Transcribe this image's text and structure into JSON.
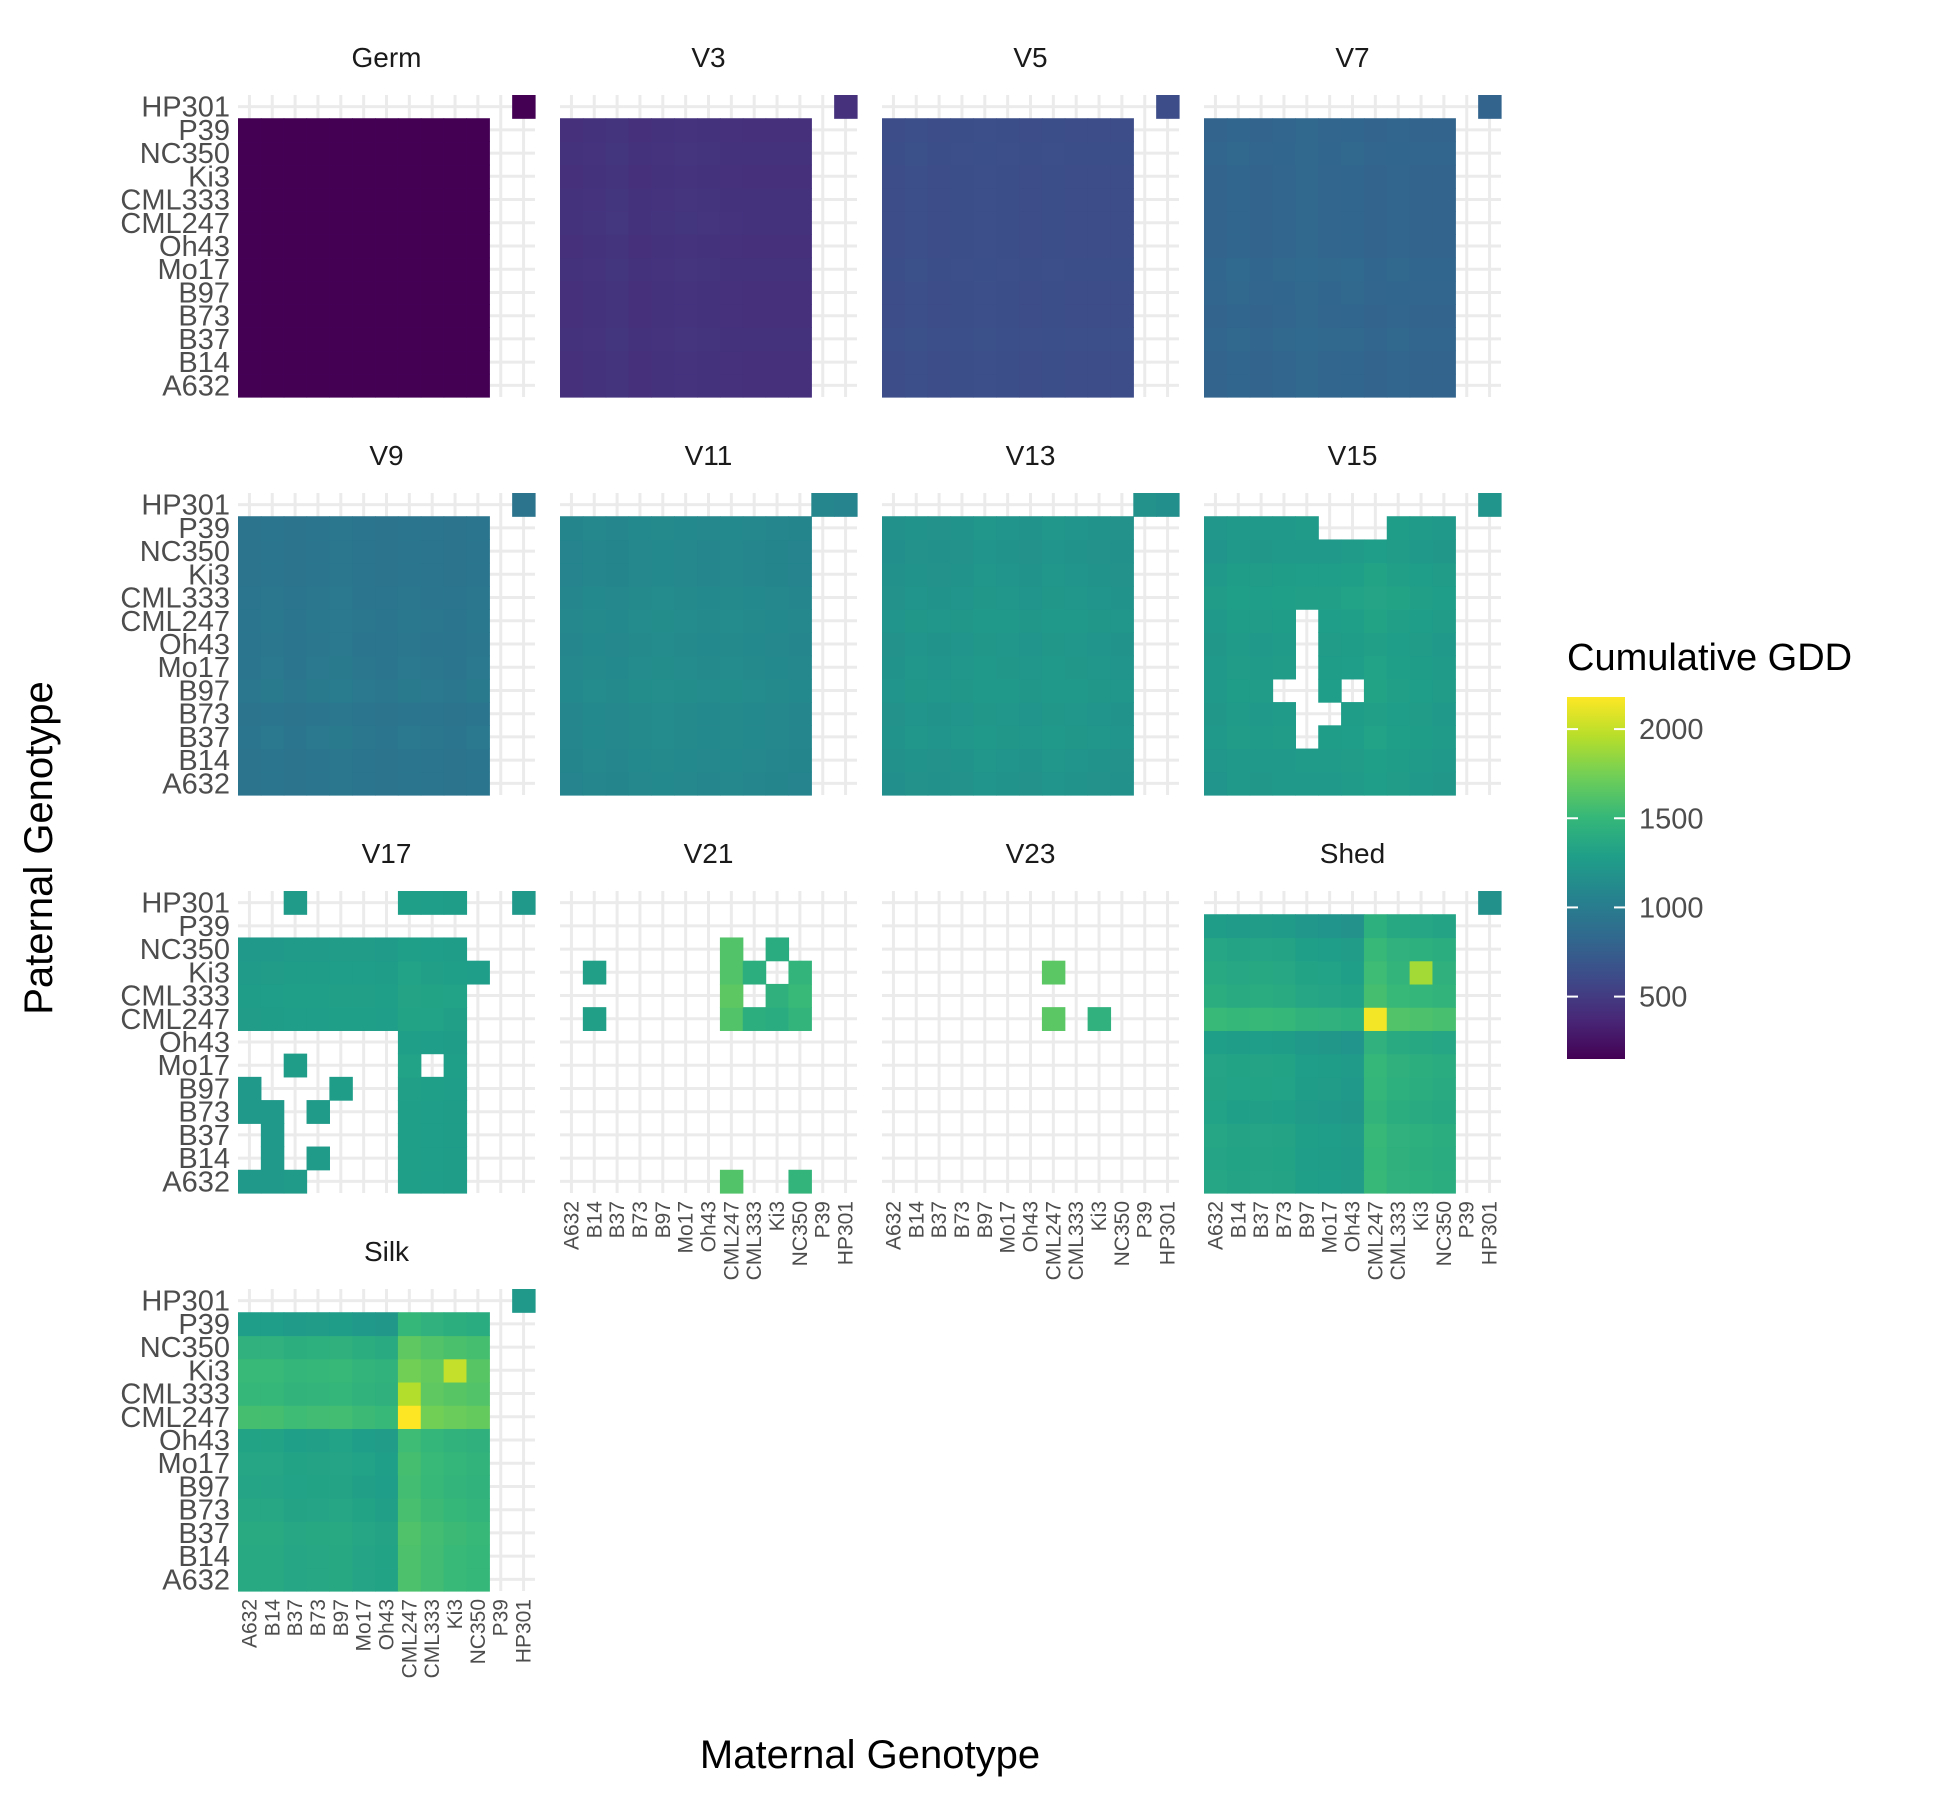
{
  "chart_data": {
    "type": "heatmap",
    "xlabel": "Maternal Genotype",
    "ylabel": "Paternal Genotype",
    "genotypes": [
      "A632",
      "B14",
      "B37",
      "B73",
      "B97",
      "Mo17",
      "Oh43",
      "CML247",
      "CML333",
      "Ki3",
      "NC350",
      "P39",
      "HP301"
    ],
    "panels": [
      {
        "name": "Germ",
        "base": 150,
        "mat_eff": [
          0,
          0,
          0,
          0,
          0,
          0,
          0,
          0,
          0,
          0,
          0,
          0,
          0
        ],
        "pat_eff": [
          0,
          0,
          0,
          0,
          0,
          0,
          0,
          0,
          0,
          0,
          0,
          0,
          0
        ],
        "missing": [],
        "present": [],
        "extra": [
          [
            12,
            12
          ]
        ]
      },
      {
        "name": "V3",
        "base": 430,
        "mat_eff": [
          0,
          10,
          25,
          0,
          10,
          20,
          15,
          5,
          0,
          0,
          0,
          10,
          0
        ],
        "pat_eff": [
          0,
          0,
          10,
          0,
          0,
          10,
          0,
          15,
          10,
          0,
          10,
          0,
          5
        ],
        "missing": [],
        "present": [],
        "extra": [
          [
            12,
            12
          ]
        ]
      },
      {
        "name": "V5",
        "base": 620,
        "mat_eff": [
          0,
          20,
          0,
          10,
          15,
          10,
          0,
          10,
          0,
          0,
          0,
          10,
          0
        ],
        "pat_eff": [
          0,
          0,
          15,
          0,
          0,
          10,
          0,
          0,
          0,
          0,
          10,
          0,
          0
        ],
        "missing": [],
        "present": [],
        "extra": [
          [
            12,
            12
          ]
        ]
      },
      {
        "name": "V7",
        "base": 800,
        "mat_eff": [
          0,
          20,
          0,
          10,
          25,
          10,
          20,
          0,
          10,
          0,
          0,
          20,
          0
        ],
        "pat_eff": [
          0,
          0,
          15,
          0,
          10,
          20,
          0,
          0,
          0,
          0,
          10,
          0,
          0
        ],
        "missing": [],
        "present": [],
        "extra": [
          [
            12,
            12
          ]
        ]
      },
      {
        "name": "V9",
        "base": 930,
        "mat_eff": [
          0,
          20,
          0,
          20,
          30,
          10,
          0,
          20,
          10,
          0,
          20,
          0,
          0
        ],
        "pat_eff": [
          0,
          0,
          20,
          0,
          30,
          20,
          10,
          15,
          10,
          0,
          0,
          0,
          0
        ],
        "missing": [],
        "present": [],
        "extra": [
          [
            12,
            12
          ]
        ]
      },
      {
        "name": "V11",
        "base": 1070,
        "mat_eff": [
          0,
          20,
          10,
          30,
          40,
          30,
          20,
          30,
          20,
          10,
          0,
          20,
          0
        ],
        "pat_eff": [
          0,
          10,
          20,
          20,
          40,
          30,
          20,
          30,
          20,
          0,
          0,
          10,
          0
        ],
        "missing": [],
        "present": [],
        "extra": [
          [
            12,
            11
          ],
          [
            12,
            12
          ]
        ]
      },
      {
        "name": "V13",
        "base": 1160,
        "mat_eff": [
          0,
          20,
          10,
          20,
          40,
          30,
          20,
          40,
          30,
          20,
          10,
          20,
          0
        ],
        "pat_eff": [
          0,
          10,
          30,
          20,
          40,
          30,
          20,
          40,
          20,
          10,
          0,
          10,
          0
        ],
        "missing": [
          [
            6,
            11
          ]
        ],
        "present": [],
        "extra": [
          [
            12,
            11
          ],
          [
            12,
            12
          ]
        ]
      },
      {
        "name": "V15",
        "base": 1200,
        "mat_eff": [
          0,
          30,
          20,
          30,
          40,
          40,
          50,
          80,
          60,
          40,
          20,
          20,
          0
        ],
        "pat_eff": [
          0,
          10,
          30,
          20,
          40,
          30,
          20,
          40,
          60,
          40,
          0,
          10,
          0
        ],
        "missing": [
          [
            3,
            4
          ],
          [
            4,
            4
          ],
          [
            5,
            4
          ],
          [
            6,
            4
          ],
          [
            7,
            4
          ],
          [
            4,
            3
          ],
          [
            3,
            5
          ],
          [
            2,
            4
          ],
          [
            11,
            5
          ],
          [
            11,
            6
          ],
          [
            11,
            7
          ],
          [
            6,
            11
          ],
          [
            7,
            11
          ],
          [
            8,
            11
          ],
          [
            9,
            11
          ],
          [
            10,
            11
          ],
          [
            11,
            11
          ],
          [
            4,
            6
          ]
        ],
        "present": [],
        "extra": [
          [
            12,
            12
          ]
        ]
      },
      {
        "name": "V17",
        "base": 1230,
        "mat_eff": [
          0,
          10,
          20,
          20,
          30,
          30,
          20,
          60,
          50,
          40,
          30,
          0,
          0
        ],
        "pat_eff": [
          0,
          0,
          0,
          0,
          10,
          20,
          0,
          30,
          40,
          20,
          0,
          0,
          0
        ],
        "missing": [],
        "present": [
          [
            12,
            2
          ],
          [
            12,
            7
          ],
          [
            12,
            8
          ],
          [
            12,
            9
          ],
          [
            12,
            12
          ],
          [
            10,
            0
          ],
          [
            10,
            1
          ],
          [
            10,
            2
          ],
          [
            10,
            3
          ],
          [
            10,
            4
          ],
          [
            10,
            5
          ],
          [
            10,
            6
          ],
          [
            10,
            7
          ],
          [
            10,
            8
          ],
          [
            10,
            9
          ],
          [
            9,
            0
          ],
          [
            9,
            1
          ],
          [
            9,
            2
          ],
          [
            9,
            3
          ],
          [
            9,
            4
          ],
          [
            9,
            5
          ],
          [
            9,
            6
          ],
          [
            9,
            7
          ],
          [
            9,
            8
          ],
          [
            9,
            9
          ],
          [
            9,
            10
          ],
          [
            8,
            0
          ],
          [
            8,
            1
          ],
          [
            8,
            2
          ],
          [
            8,
            3
          ],
          [
            8,
            4
          ],
          [
            8,
            5
          ],
          [
            8,
            6
          ],
          [
            8,
            7
          ],
          [
            8,
            8
          ],
          [
            8,
            9
          ],
          [
            7,
            0
          ],
          [
            7,
            1
          ],
          [
            7,
            2
          ],
          [
            7,
            3
          ],
          [
            7,
            4
          ],
          [
            7,
            5
          ],
          [
            7,
            6
          ],
          [
            7,
            7
          ],
          [
            7,
            8
          ],
          [
            7,
            9
          ],
          [
            6,
            7
          ],
          [
            6,
            8
          ],
          [
            6,
            9
          ],
          [
            5,
            2
          ],
          [
            5,
            7
          ],
          [
            5,
            9
          ],
          [
            4,
            0
          ],
          [
            4,
            4
          ],
          [
            4,
            7
          ],
          [
            4,
            8
          ],
          [
            4,
            9
          ],
          [
            3,
            0
          ],
          [
            3,
            1
          ],
          [
            3,
            3
          ],
          [
            3,
            7
          ],
          [
            3,
            8
          ],
          [
            3,
            9
          ],
          [
            2,
            1
          ],
          [
            2,
            7
          ],
          [
            2,
            8
          ],
          [
            2,
            9
          ],
          [
            1,
            1
          ],
          [
            1,
            3
          ],
          [
            1,
            7
          ],
          [
            1,
            8
          ],
          [
            1,
            9
          ],
          [
            0,
            0
          ],
          [
            0,
            1
          ],
          [
            0,
            2
          ],
          [
            0,
            7
          ],
          [
            0,
            8
          ],
          [
            0,
            9
          ]
        ],
        "extra": []
      },
      {
        "name": "V21",
        "base": 1300,
        "mat_eff": [
          0,
          0,
          0,
          0,
          0,
          0,
          0,
          320,
          120,
          100,
          180,
          0,
          0
        ],
        "pat_eff": [
          0,
          0,
          0,
          0,
          0,
          0,
          0,
          0,
          40,
          0,
          0,
          0,
          0
        ],
        "missing": [],
        "present": [
          [
            10,
            7
          ],
          [
            10,
            9
          ],
          [
            9,
            1
          ],
          [
            9,
            7
          ],
          [
            9,
            8
          ],
          [
            9,
            10
          ],
          [
            8,
            7
          ],
          [
            8,
            9
          ],
          [
            8,
            10
          ],
          [
            7,
            1
          ],
          [
            7,
            7
          ],
          [
            7,
            8
          ],
          [
            7,
            9
          ],
          [
            7,
            10
          ],
          [
            0,
            7
          ],
          [
            0,
            10
          ]
        ],
        "extra": []
      },
      {
        "name": "V23",
        "base": 1450,
        "mat_eff": [
          0,
          0,
          0,
          0,
          0,
          0,
          0,
          200,
          0,
          0,
          0,
          0,
          0
        ],
        "pat_eff": [
          0,
          0,
          0,
          0,
          0,
          0,
          0,
          0,
          0,
          0,
          0,
          0,
          0
        ],
        "missing": [],
        "present": [
          [
            9,
            7
          ],
          [
            7,
            7
          ],
          [
            7,
            9
          ]
        ],
        "extra": []
      },
      {
        "name": "Shed",
        "base": 1170,
        "mat_eff": [
          120,
          100,
          110,
          100,
          60,
          50,
          30,
          280,
          220,
          200,
          180,
          0,
          0
        ],
        "pat_eff": [
          60,
          50,
          60,
          20,
          40,
          50,
          0,
          230,
          120,
          90,
          60,
          -20,
          0
        ],
        "missing": [],
        "present": [],
        "extra": [
          [
            12,
            12
          ]
        ],
        "spike": [
          [
            7,
            7,
            2150
          ],
          [
            9,
            9,
            1900
          ]
        ]
      },
      {
        "name": "Silk",
        "base": 1240,
        "mat_eff": [
          80,
          80,
          50,
          60,
          70,
          40,
          20,
          300,
          250,
          220,
          200,
          0,
          0
        ],
        "pat_eff": [
          60,
          60,
          70,
          40,
          20,
          30,
          0,
          250,
          180,
          200,
          130,
          -40,
          0
        ],
        "missing": [],
        "present": [],
        "extra": [
          [
            12,
            12
          ]
        ],
        "spike": [
          [
            7,
            7,
            2180
          ],
          [
            9,
            9,
            2000
          ],
          [
            8,
            7,
            1950
          ]
        ]
      }
    ],
    "legend": {
      "title": "Cumulative GDD",
      "min": 150,
      "max": 2180,
      "ticks": [
        500,
        1000,
        1500,
        2000
      ]
    }
  },
  "colors": {
    "grid": "#ebebeb",
    "text": "#4d4d4d",
    "viridis": [
      "#440154",
      "#482878",
      "#3e4a89",
      "#31688e",
      "#26828e",
      "#1f9e89",
      "#35b779",
      "#6ece58",
      "#b5de2b",
      "#fde725"
    ]
  }
}
